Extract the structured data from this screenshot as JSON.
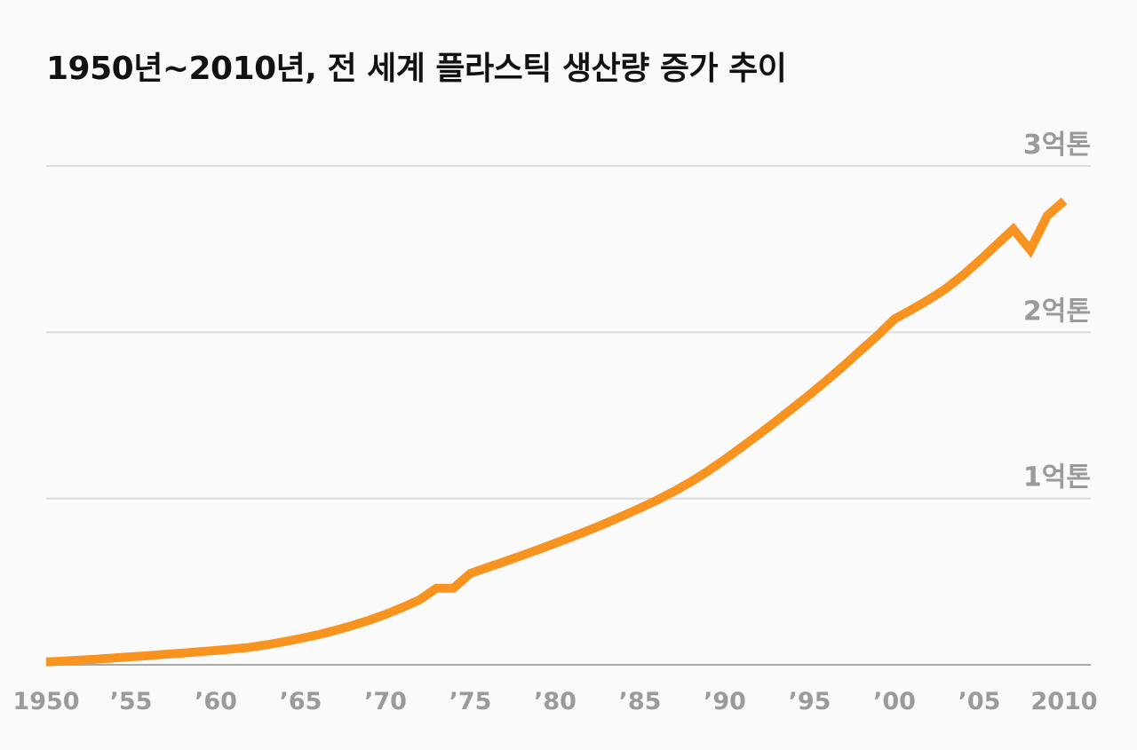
{
  "chart_data": {
    "type": "line",
    "title": "1950년~2010년, 전 세계 플라스틱 생산량 증가 추이",
    "xlabel": "",
    "ylabel": "",
    "xlim": [
      1950,
      2010
    ],
    "ylim": [
      0,
      300
    ],
    "grid": true,
    "legend": "none",
    "line_color": "#f7931e",
    "x_ticks": [
      {
        "value": 1950,
        "label": "1950"
      },
      {
        "value": 1955,
        "label": "’55"
      },
      {
        "value": 1960,
        "label": "’60"
      },
      {
        "value": 1965,
        "label": "’65"
      },
      {
        "value": 1970,
        "label": "’70"
      },
      {
        "value": 1975,
        "label": "’75"
      },
      {
        "value": 1980,
        "label": "’80"
      },
      {
        "value": 1985,
        "label": "’85"
      },
      {
        "value": 1990,
        "label": "’90"
      },
      {
        "value": 1995,
        "label": "’95"
      },
      {
        "value": 2000,
        "label": "’00"
      },
      {
        "value": 2005,
        "label": "’05"
      },
      {
        "value": 2010,
        "label": "2010"
      }
    ],
    "y_ticks": [
      {
        "value": 100,
        "label": "1억톤"
      },
      {
        "value": 200,
        "label": "2억톤"
      },
      {
        "value": 300,
        "label": "3억톤"
      }
    ],
    "series": [
      {
        "name": "",
        "x": [
          1950,
          1951,
          1952,
          1953,
          1954,
          1955,
          1956,
          1957,
          1958,
          1959,
          1960,
          1961,
          1962,
          1963,
          1964,
          1965,
          1966,
          1967,
          1968,
          1969,
          1970,
          1971,
          1972,
          1973,
          1974,
          1975,
          1976,
          1977,
          1978,
          1979,
          1980,
          1981,
          1982,
          1983,
          1984,
          1985,
          1986,
          1987,
          1988,
          1989,
          1990,
          1991,
          1992,
          1993,
          1994,
          1995,
          1996,
          1997,
          1998,
          1999,
          2000,
          2001,
          2002,
          2003,
          2004,
          2005,
          2006,
          2007,
          2008,
          2009,
          2010
        ],
        "values": [
          1.7,
          2.2,
          2.8,
          3.4,
          4.1,
          4.8,
          5.5,
          6.3,
          7.0,
          7.8,
          8.6,
          9.5,
          10.5,
          12.0,
          13.8,
          15.8,
          18.0,
          20.6,
          23.5,
          26.7,
          30.3,
          34.5,
          39.0,
          46.0,
          46.0,
          55.0,
          58.5,
          62.0,
          65.6,
          69.3,
          73.1,
          77.0,
          81.0,
          85.2,
          89.6,
          94.2,
          99.0,
          104.3,
          110.0,
          116.5,
          123.5,
          131.0,
          138.5,
          146.3,
          154.4,
          162.5,
          171.0,
          179.8,
          189.0,
          198.0,
          208.0,
          213.5,
          219.5,
          226.0,
          234.0,
          243.0,
          252.5,
          262.0,
          249.5,
          270.0,
          279.0
        ]
      }
    ]
  }
}
